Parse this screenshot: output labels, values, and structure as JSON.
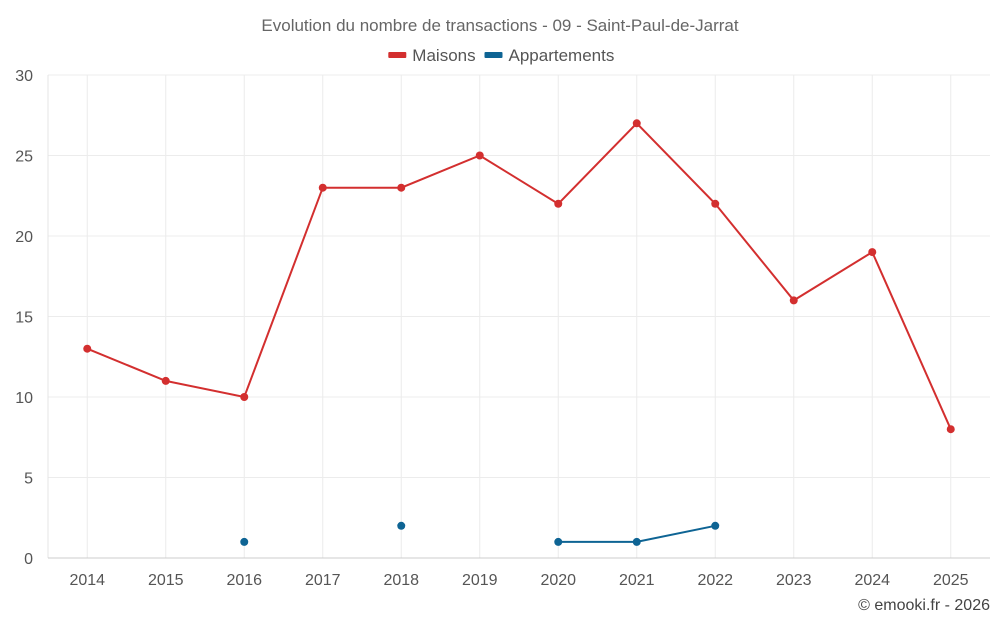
{
  "chart_data": {
    "type": "line",
    "title": "Evolution du nombre de transactions - 09 - Saint-Paul-de-Jarrat",
    "categories": [
      "2014",
      "2015",
      "2016",
      "2017",
      "2018",
      "2019",
      "2020",
      "2021",
      "2022",
      "2023",
      "2024",
      "2025"
    ],
    "ylim": [
      0,
      30
    ],
    "yticks": [
      0,
      5,
      10,
      15,
      20,
      25,
      30
    ],
    "grid": true,
    "legend_position": "top-center",
    "series": [
      {
        "name": "Maisons",
        "color": "#d32f2f",
        "values": [
          13,
          11,
          10,
          23,
          23,
          25,
          22,
          27,
          22,
          16,
          19,
          8
        ]
      },
      {
        "name": "Appartements",
        "color": "#0e6494",
        "values": [
          null,
          null,
          1,
          null,
          2,
          null,
          1,
          1,
          2,
          null,
          null,
          null
        ]
      }
    ]
  },
  "footer": "© emooki.fr - 2026"
}
